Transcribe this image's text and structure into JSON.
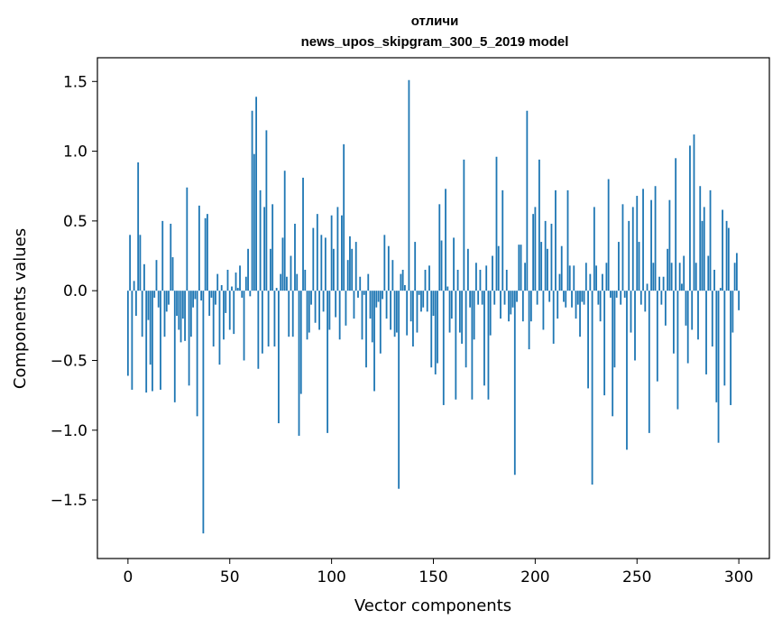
{
  "chart_data": {
    "type": "bar",
    "title": "отличи",
    "subtitle": "news_upos_skipgram_300_5_2019 model",
    "xlabel": "Vector components",
    "ylabel": "Components values",
    "xlim": [
      -15,
      315
    ],
    "ylim": [
      -1.92,
      1.67
    ],
    "xticks": [
      0,
      50,
      100,
      150,
      200,
      250,
      300
    ],
    "xtick_labels": [
      "0",
      "50",
      "100",
      "150",
      "200",
      "250",
      "300"
    ],
    "yticks": [
      -1.5,
      -1.0,
      -0.5,
      0.0,
      0.5,
      1.0,
      1.5
    ],
    "ytick_labels": [
      "−1.5",
      "−1.0",
      "−0.5",
      "0.0",
      "0.5",
      "1.0",
      "1.5"
    ],
    "bar_color": "#1f77b4",
    "grid": false,
    "legend": "none",
    "values": [
      -0.61,
      0.4,
      -0.71,
      0.07,
      -0.18,
      0.92,
      0.4,
      -0.33,
      0.19,
      -0.73,
      -0.21,
      -0.53,
      -0.72,
      -0.05,
      0.22,
      -0.12,
      -0.71,
      0.5,
      -0.33,
      -0.15,
      -0.1,
      0.48,
      0.24,
      -0.8,
      -0.18,
      -0.28,
      -0.37,
      -0.2,
      -0.36,
      0.74,
      -0.68,
      -0.33,
      -0.12,
      -0.06,
      -0.9,
      0.61,
      -0.07,
      -1.74,
      0.52,
      0.55,
      -0.18,
      -0.05,
      -0.4,
      -0.1,
      0.12,
      -0.53,
      0.04,
      -0.35,
      -0.16,
      0.15,
      -0.28,
      0.03,
      -0.31,
      0.13,
      0.02,
      0.18,
      -0.05,
      -0.5,
      0.1,
      0.3,
      -0.04,
      1.29,
      0.98,
      1.39,
      -0.56,
      0.72,
      -0.45,
      0.6,
      1.15,
      -0.4,
      0.3,
      0.62,
      -0.4,
      0.02,
      -0.95,
      0.12,
      0.38,
      0.86,
      0.1,
      -0.33,
      0.25,
      -0.33,
      0.48,
      0.12,
      -1.04,
      -0.74,
      0.81,
      0.15,
      -0.35,
      -0.3,
      -0.1,
      0.45,
      -0.23,
      0.55,
      -0.28,
      0.4,
      -0.15,
      0.38,
      -1.02,
      -0.28,
      0.54,
      0.3,
      -0.19,
      0.6,
      -0.35,
      0.54,
      1.05,
      -0.25,
      0.22,
      0.39,
      0.3,
      -0.2,
      0.35,
      -0.05,
      0.1,
      -0.35,
      -0.03,
      -0.55,
      0.12,
      -0.2,
      -0.37,
      -0.72,
      -0.12,
      -0.08,
      -0.45,
      -0.06,
      0.4,
      -0.2,
      0.32,
      -0.28,
      0.22,
      -0.33,
      -0.3,
      -1.42,
      0.12,
      0.15,
      0.04,
      -0.32,
      1.51,
      -0.22,
      -0.4,
      0.35,
      -0.3,
      -0.03,
      -0.15,
      -0.12,
      0.15,
      -0.15,
      0.18,
      -0.55,
      -0.18,
      -0.6,
      -0.52,
      0.62,
      0.36,
      -0.82,
      0.73,
      0.03,
      -0.3,
      -0.2,
      0.38,
      -0.78,
      0.15,
      -0.3,
      -0.38,
      0.94,
      -0.55,
      0.3,
      -0.12,
      -0.78,
      -0.35,
      0.2,
      -0.1,
      0.15,
      -0.1,
      -0.68,
      0.18,
      -0.78,
      -0.32,
      0.25,
      -0.1,
      0.96,
      0.32,
      -0.2,
      0.72,
      -0.1,
      0.15,
      -0.22,
      -0.17,
      -0.12,
      -1.32,
      -0.08,
      0.33,
      0.33,
      -0.22,
      0.2,
      1.29,
      -0.42,
      -0.22,
      0.55,
      0.6,
      -0.1,
      0.94,
      0.35,
      -0.28,
      0.5,
      0.3,
      -0.08,
      0.48,
      -0.38,
      0.72,
      -0.2,
      0.12,
      0.32,
      -0.08,
      -0.12,
      0.72,
      0.18,
      -0.12,
      0.18,
      -0.2,
      -0.1,
      -0.33,
      -0.08,
      -0.1,
      0.2,
      -0.7,
      0.12,
      -1.39,
      0.6,
      0.18,
      -0.1,
      -0.22,
      0.12,
      -0.75,
      0.2,
      0.8,
      -0.05,
      -0.9,
      -0.55,
      -0.05,
      0.35,
      -0.1,
      0.62,
      -0.05,
      -1.14,
      0.5,
      -0.3,
      0.6,
      -0.5,
      0.68,
      0.35,
      -0.1,
      0.73,
      -0.15,
      0.05,
      -1.02,
      0.65,
      0.2,
      0.75,
      -0.65,
      0.1,
      -0.1,
      0.1,
      -0.25,
      0.3,
      0.65,
      0.2,
      -0.45,
      0.95,
      -0.85,
      0.2,
      0.05,
      0.25,
      -0.25,
      -0.52,
      1.04,
      -0.28,
      1.12,
      0.2,
      -0.35,
      0.75,
      0.5,
      0.6,
      -0.6,
      0.25,
      0.72,
      -0.4,
      0.15,
      -0.8,
      -1.09,
      0.02,
      0.58,
      -0.68,
      0.5,
      0.45,
      -0.82,
      -0.3,
      0.2,
      0.27,
      -0.14
    ]
  }
}
